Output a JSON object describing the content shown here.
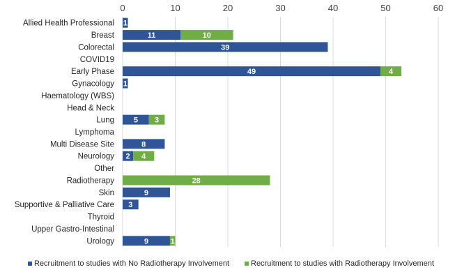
{
  "chart_data": {
    "type": "bar",
    "orientation": "horizontal",
    "stacked": true,
    "title": "",
    "xlabel": "",
    "ylabel": "",
    "xlim": [
      0,
      60
    ],
    "x_ticks": [
      0,
      10,
      20,
      30,
      40,
      50,
      60
    ],
    "x_axis_position": "top",
    "grid": true,
    "legend_position": "bottom",
    "categories": [
      "Allied Health Professional",
      "Breast",
      "Colorectal",
      "COVID19",
      "Early Phase",
      "Gynacology",
      "Haematology (WBS)",
      "Head & Neck",
      "Lung",
      "Lymphoma",
      "Multi Disease Site",
      "Neurology",
      "Other",
      "Radiotherapy",
      "Skin",
      "Supportive & Palliative Care",
      "Thyroid",
      "Upper Gastro-Intestinal",
      "Urology"
    ],
    "series": [
      {
        "name": "Recruitment to studies with No Radiotherapy Involvement",
        "color": "#2f5597",
        "values": [
          1,
          11,
          39,
          0,
          49,
          1,
          0,
          0,
          5,
          0,
          8,
          2,
          0,
          0,
          9,
          3,
          0,
          0,
          9
        ]
      },
      {
        "name": "Recruitment to studies with Radiotherapy Involvement",
        "color": "#70ad47",
        "values": [
          0,
          10,
          0,
          0,
          4,
          0,
          0,
          0,
          3,
          0,
          0,
          4,
          0,
          28,
          0,
          0,
          0,
          0,
          1
        ]
      }
    ]
  }
}
